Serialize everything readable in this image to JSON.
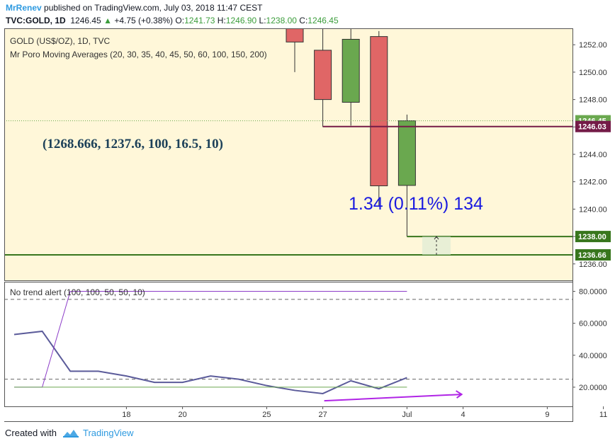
{
  "header": {
    "author": "MrRenev",
    "published_text": "published on TradingView.com, July 03, 2018 11:47 CEST",
    "symbol": "TVC:GOLD, 1D",
    "last": "1246.45",
    "change_arrow": "▲",
    "change": "+4.75 (+0.38%)",
    "open_label": "O:",
    "open": "1241.73",
    "high_label": "H:",
    "high": "1246.90",
    "low_label": "L:",
    "low": "1238.00",
    "close_label": "C:",
    "close": "1246.45"
  },
  "footer": {
    "created_with": "Created with",
    "brand": "TradingView",
    "logo_icon": "tradingview-logo-icon"
  },
  "colors": {
    "plot_bg": "#fff7d9",
    "bull": "#6aa84f",
    "bear": "#e06666",
    "resistance_line": "#741b47",
    "support_line": "#38761d",
    "indicator_line": "#5b5b9a",
    "alert_line": "#8c3cc8",
    "arrow": "#b025e6",
    "text_dark": "#1d4159",
    "measure_text": "#1a1ae0"
  },
  "chart_data": [
    {
      "type": "candlestick",
      "title": "GOLD (US$/OZ), 1D, TVC",
      "subtitle": "Mr Poro Moving Averages (20, 30, 35, 40, 45, 50, 60, 100, 150, 200)",
      "ylim": [
        1234.8,
        1253.2
      ],
      "y_ticks": [
        "1252.00",
        "1250.00",
        "1248.00",
        "1246.00",
        "1244.00",
        "1242.00",
        "1240.00",
        "1238.00",
        "1236.00"
      ],
      "x_ticks": [
        "18",
        "20",
        "25",
        "27",
        "Jul",
        "4",
        "9",
        "11"
      ],
      "candles": [
        {
          "date": "2018-06-26",
          "open": 1253.5,
          "high": 1256.0,
          "low": 1250.0,
          "close": 1252.2
        },
        {
          "date": "2018-06-27",
          "open": 1251.6,
          "high": 1253.5,
          "low": 1246.0,
          "close": 1248.0
        },
        {
          "date": "2018-06-28",
          "open": 1247.8,
          "high": 1253.5,
          "low": 1246.1,
          "close": 1252.4
        },
        {
          "date": "2018-06-29",
          "open": 1252.6,
          "high": 1253.0,
          "low": 1240.2,
          "close": 1241.7
        },
        {
          "date": "2018-07-02",
          "open": 1241.73,
          "high": 1246.9,
          "low": 1238.0,
          "close": 1246.45
        }
      ],
      "horizontal_lines": [
        {
          "value": 1246.03,
          "label": "1246.03",
          "color": "#741b47"
        },
        {
          "value": 1238.0,
          "label": "1238.00",
          "color": "#38761d"
        },
        {
          "value": 1236.66,
          "label": "1236.66",
          "color": "#38761d"
        }
      ],
      "last_price": {
        "value": 1246.45,
        "label": "1246.45"
      },
      "annotation": "(1268.666, 1237.6, 100, 16.5, 10)",
      "measure_text": "1.34 (0.11%) 134"
    },
    {
      "type": "line",
      "title": "No trend alert (100, 100, 50, 50, 10)",
      "ylim": [
        8,
        86
      ],
      "y_ticks": [
        "80.0000",
        "60.0000",
        "40.0000",
        "20.0000"
      ],
      "levels": [
        75,
        25
      ],
      "series": [
        {
          "name": "",
          "x": [
            "06-12",
            "06-13",
            "06-14",
            "06-15",
            "06-18",
            "06-19",
            "06-20",
            "06-21",
            "06-22",
            "06-25",
            "06-26",
            "06-27",
            "06-28",
            "06-29",
            "07-02"
          ],
          "values": [
            53,
            55,
            30,
            30,
            27,
            23,
            23,
            27,
            25,
            21,
            18,
            16,
            24,
            19,
            26
          ]
        },
        {
          "name": "",
          "x": [
            "06-12",
            "06-13",
            "06-14",
            "07-02"
          ],
          "values": [
            20,
            20,
            80,
            80
          ]
        },
        {
          "name": "",
          "x": [
            "06-12",
            "07-02"
          ],
          "values": [
            20,
            20
          ]
        }
      ]
    }
  ]
}
